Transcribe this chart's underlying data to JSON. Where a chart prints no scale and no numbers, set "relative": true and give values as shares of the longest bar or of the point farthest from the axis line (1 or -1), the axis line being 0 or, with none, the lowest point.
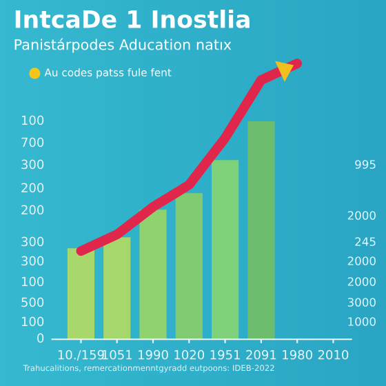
{
  "chart_data": {
    "type": "bar",
    "title": "IntcaDe 1 Inostlia",
    "subtitle": "Panistárpodes Aducation natıx",
    "relative": true,
    "categories": [
      "10./159",
      "1051",
      "1990",
      "1020",
      "1951",
      "2091",
      "1980",
      "2010"
    ],
    "series": [
      {
        "colors": [
          "#a8d86c",
          "#a5d76d",
          "#8fd26f",
          "#80cb72",
          "#7fd27a",
          "#6cbd6e",
          "#6cbd6e",
          "#6cbd6e"
        ],
        "values": [
          0.33,
          0.37,
          0.47,
          0.53,
          0.65,
          0.79,
          null,
          null
        ]
      },
      {
        "type": "line",
        "color": "#e0264a",
        "values": [
          0.32,
          0.38,
          0.48,
          0.56,
          0.73,
          0.94,
          1,
          null
        ]
      }
    ],
    "annotations": [
      "Au codes patss fule fent",
      "Trahucalitions, remercationmenntgyradd eutpoons: IDEB-2022",
      "0",
      "100",
      "500",
      "100",
      "300",
      "300",
      "200",
      "200",
      "300",
      "700",
      "100",
      "1000",
      "3000",
      "2000",
      "2000",
      "245",
      "2000",
      "995"
    ]
  }
}
